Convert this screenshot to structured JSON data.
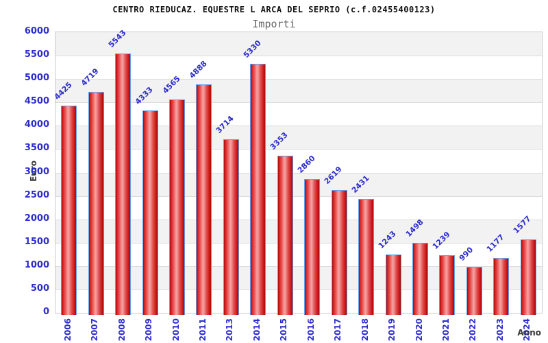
{
  "chart_data": {
    "type": "bar",
    "title": "CENTRO RIEDUCAZ. EQUESTRE L ARCA DEL SEPRIO (c.f.02455400123)",
    "subtitle": "Importi",
    "xlabel": "Anno",
    "ylabel": "Euro",
    "categories": [
      "2006",
      "2007",
      "2008",
      "2009",
      "2010",
      "2011",
      "2013",
      "2014",
      "2015",
      "2016",
      "2017",
      "2018",
      "2019",
      "2020",
      "2021",
      "2022",
      "2023",
      "2024"
    ],
    "values": [
      4425,
      4719,
      5543,
      4333,
      4565,
      4888,
      3714,
      5330,
      3353,
      2860,
      2619,
      2431,
      1243,
      1498,
      1239,
      990,
      1177,
      1577
    ],
    "ylim": [
      0,
      6000
    ],
    "ytick_step": 500,
    "yticks": [
      0,
      500,
      1000,
      1500,
      2000,
      2500,
      3000,
      3500,
      4000,
      4500,
      5000,
      5500,
      6000
    ],
    "grid": "horizontal-alternating-bands",
    "legend": "none",
    "bar_value_labels_rotation_deg": -45,
    "x_tick_labels_rotation_deg": -90
  },
  "colors": {
    "bar_fill_dark": "#a80808",
    "bar_fill_light": "#f5a2a2",
    "bar_border": "#5ea4ee",
    "tick_label_blue": "#2c2ccd",
    "axis_title_gray": "#3a3a3a",
    "band_gray": "#f2f2f2",
    "band_white": "#ffffff",
    "gridline": "#dcdcdc",
    "plot_border": "#c9c9c9",
    "title_color": "#111111",
    "subtitle_color": "#666666"
  }
}
